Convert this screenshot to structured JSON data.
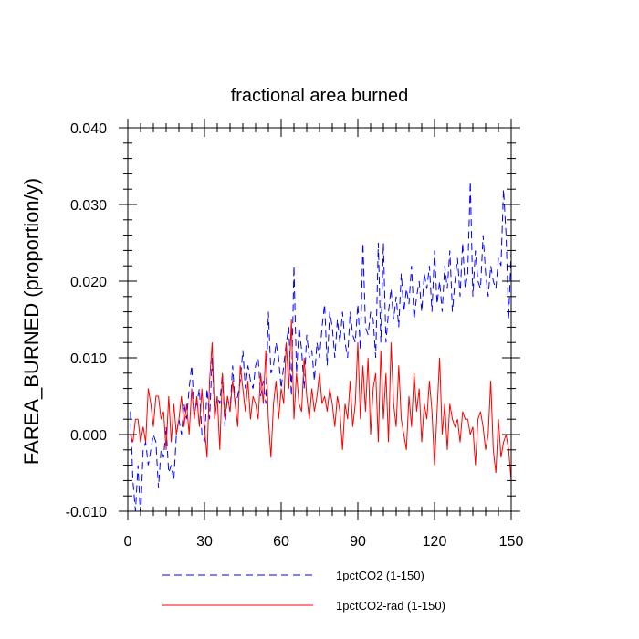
{
  "chart_data": {
    "type": "line",
    "title": "fractional area burned",
    "ylabel": "FAREA_BURNED  (proportion/y)",
    "xlabel": "",
    "xlim": [
      0,
      150
    ],
    "ylim": [
      -0.01,
      0.04
    ],
    "xticks": [
      0,
      30,
      60,
      90,
      120,
      150
    ],
    "xtick_labels": [
      "0",
      "30",
      "60",
      "90",
      "120",
      "150"
    ],
    "yticks": [
      -0.01,
      0.0,
      0.01,
      0.02,
      0.03,
      0.04
    ],
    "ytick_labels": [
      "-0.010",
      "0.000",
      "0.010",
      "0.020",
      "0.030",
      "0.040"
    ],
    "legend_position": "bottom",
    "series": [
      {
        "name": "1pctCO2 (1-150)",
        "color": "#0000ff",
        "dash": "dashed",
        "x": [
          1,
          2,
          3,
          4,
          5,
          6,
          7,
          8,
          9,
          10,
          11,
          12,
          13,
          14,
          15,
          16,
          17,
          18,
          19,
          20,
          21,
          22,
          23,
          24,
          25,
          26,
          27,
          28,
          29,
          30,
          31,
          32,
          33,
          34,
          35,
          36,
          37,
          38,
          39,
          40,
          41,
          42,
          43,
          44,
          45,
          46,
          47,
          48,
          49,
          50,
          51,
          52,
          53,
          54,
          55,
          56,
          57,
          58,
          59,
          60,
          61,
          62,
          63,
          64,
          65,
          66,
          67,
          68,
          69,
          70,
          71,
          72,
          73,
          74,
          75,
          76,
          77,
          78,
          79,
          80,
          81,
          82,
          83,
          84,
          85,
          86,
          87,
          88,
          89,
          90,
          91,
          92,
          93,
          94,
          95,
          96,
          97,
          98,
          99,
          100,
          101,
          102,
          103,
          104,
          105,
          106,
          107,
          108,
          109,
          110,
          111,
          112,
          113,
          114,
          115,
          116,
          117,
          118,
          119,
          120,
          121,
          122,
          123,
          124,
          125,
          126,
          127,
          128,
          129,
          130,
          131,
          132,
          133,
          134,
          135,
          136,
          137,
          138,
          139,
          140,
          141,
          142,
          143,
          144,
          145,
          146,
          147,
          148,
          149,
          150
        ],
        "values": [
          0.003,
          -0.006,
          -0.01,
          -0.004,
          -0.011,
          -0.002,
          -0.001,
          -0.004,
          -0.002,
          0.0,
          -0.001,
          -0.007,
          -0.002,
          -0.003,
          0.001,
          -0.005,
          -0.004,
          -0.006,
          0.0,
          0.002,
          0.0,
          0.004,
          0.002,
          0.006,
          0.009,
          0.003,
          0.004,
          0.006,
          0.0,
          -0.001,
          0.006,
          0.002,
          0.01,
          0.002,
          0.005,
          0.004,
          0.008,
          0.001,
          0.005,
          0.003,
          0.009,
          0.004,
          0.005,
          0.007,
          0.011,
          0.006,
          0.009,
          0.007,
          0.006,
          0.009,
          0.01,
          0.005,
          0.007,
          0.004,
          0.016,
          0.008,
          0.009,
          0.012,
          0.01,
          0.006,
          0.009,
          0.012,
          0.014,
          0.005,
          0.022,
          0.008,
          0.014,
          0.011,
          0.006,
          0.013,
          0.01,
          0.011,
          0.007,
          0.012,
          0.01,
          0.014,
          0.017,
          0.009,
          0.016,
          0.014,
          0.01,
          0.015,
          0.012,
          0.016,
          0.012,
          0.01,
          0.016,
          0.013,
          0.012,
          0.017,
          0.011,
          0.025,
          0.014,
          0.013,
          0.016,
          0.015,
          0.01,
          0.025,
          0.012,
          0.025,
          0.012,
          0.016,
          0.019,
          0.015,
          0.018,
          0.014,
          0.021,
          0.016,
          0.019,
          0.017,
          0.022,
          0.015,
          0.018,
          0.02,
          0.016,
          0.021,
          0.019,
          0.022,
          0.016,
          0.024,
          0.017,
          0.02,
          0.016,
          0.022,
          0.019,
          0.024,
          0.016,
          0.02,
          0.023,
          0.018,
          0.025,
          0.019,
          0.021,
          0.033,
          0.018,
          0.024,
          0.02,
          0.019,
          0.026,
          0.021,
          0.018,
          0.022,
          0.02,
          0.019,
          0.023,
          0.022,
          0.032,
          0.026,
          0.015,
          0.024
        ]
      },
      {
        "name": "1pctCO2-rad (1-150)",
        "color": "#ff0000",
        "dash": "solid",
        "x": [
          1,
          2,
          3,
          4,
          5,
          6,
          7,
          8,
          9,
          10,
          11,
          12,
          13,
          14,
          15,
          16,
          17,
          18,
          19,
          20,
          21,
          22,
          23,
          24,
          25,
          26,
          27,
          28,
          29,
          30,
          31,
          32,
          33,
          34,
          35,
          36,
          37,
          38,
          39,
          40,
          41,
          42,
          43,
          44,
          45,
          46,
          47,
          48,
          49,
          50,
          51,
          52,
          53,
          54,
          55,
          56,
          57,
          58,
          59,
          60,
          61,
          62,
          63,
          64,
          65,
          66,
          67,
          68,
          69,
          70,
          71,
          72,
          73,
          74,
          75,
          76,
          77,
          78,
          79,
          80,
          81,
          82,
          83,
          84,
          85,
          86,
          87,
          88,
          89,
          90,
          91,
          92,
          93,
          94,
          95,
          96,
          97,
          98,
          99,
          100,
          101,
          102,
          103,
          104,
          105,
          106,
          107,
          108,
          109,
          110,
          111,
          112,
          113,
          114,
          115,
          116,
          117,
          118,
          119,
          120,
          121,
          122,
          123,
          124,
          125,
          126,
          127,
          128,
          129,
          130,
          131,
          132,
          133,
          134,
          135,
          136,
          137,
          138,
          139,
          140,
          141,
          142,
          143,
          144,
          145,
          146,
          147,
          148,
          149,
          150
        ],
        "values": [
          0.0,
          -0.001,
          0.002,
          0.002,
          -0.001,
          0.001,
          -0.001,
          0.006,
          0.004,
          0.001,
          0.005,
          0.005,
          0.002,
          0.003,
          -0.002,
          0.005,
          -0.001,
          0.004,
          0.0,
          0.002,
          0.005,
          0.001,
          0.004,
          0.0,
          0.006,
          0.002,
          0.005,
          0.001,
          0.006,
          0.001,
          -0.003,
          0.007,
          0.012,
          0.002,
          0.005,
          -0.002,
          0.008,
          0.002,
          0.005,
          0.003,
          0.007,
          0.004,
          0.001,
          0.009,
          0.006,
          0.003,
          0.007,
          0.002,
          0.005,
          0.004,
          0.002,
          0.008,
          0.004,
          0.011,
          0.002,
          -0.003,
          0.004,
          0.007,
          0.002,
          0.006,
          0.004,
          0.012,
          0.006,
          0.015,
          0.002,
          0.008,
          0.004,
          0.003,
          0.01,
          0.005,
          0.002,
          0.006,
          0.003,
          0.005,
          0.008,
          0.004,
          0.005,
          0.003,
          0.006,
          0.004,
          0.001,
          0.005,
          0.003,
          -0.002,
          0.004,
          0.002,
          0.007,
          0.001,
          0.004,
          0.012,
          0.002,
          0.009,
          0.003,
          0.01,
          0.0,
          0.006,
          0.008,
          -0.001,
          0.011,
          0.002,
          0.008,
          -0.001,
          0.012,
          0.004,
          0.001,
          0.009,
          0.002,
          0.0,
          -0.002,
          0.005,
          0.001,
          0.008,
          0.003,
          0.006,
          -0.001,
          0.004,
          0.002,
          0.007,
          0.003,
          -0.004,
          0.003,
          0.01,
          0.0,
          0.004,
          -0.002,
          0.004,
          0.002,
          0.001,
          0.002,
          -0.001,
          0.003,
          0.002,
          0.002,
          0.0,
          0.001,
          -0.004,
          0.002,
          0.003,
          0.001,
          -0.002,
          0.0,
          0.007,
          -0.002,
          -0.005,
          0.002,
          -0.003,
          -0.001,
          0.0,
          -0.002,
          -0.006
        ]
      }
    ]
  }
}
